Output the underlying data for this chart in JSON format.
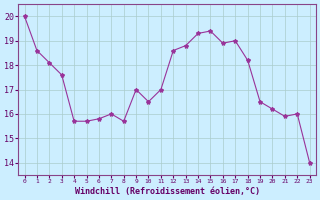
{
  "x": [
    0,
    1,
    2,
    3,
    4,
    5,
    6,
    7,
    8,
    9,
    10,
    11,
    12,
    13,
    14,
    15,
    16,
    17,
    18,
    19,
    20,
    21,
    22,
    23
  ],
  "y": [
    20.0,
    18.6,
    18.1,
    17.6,
    15.7,
    15.7,
    15.8,
    16.0,
    15.7,
    17.0,
    16.5,
    17.0,
    18.6,
    18.8,
    19.3,
    19.4,
    18.9,
    19.0,
    18.2,
    16.5,
    16.2,
    15.9,
    16.0,
    14.0
  ],
  "xlabel": "Windchill (Refroidissement éolien,°C)",
  "ylim": [
    13.5,
    20.5
  ],
  "xlim": [
    -0.5,
    23.5
  ],
  "yticks": [
    14,
    15,
    16,
    17,
    18,
    19,
    20
  ],
  "xticks": [
    0,
    1,
    2,
    3,
    4,
    5,
    6,
    7,
    8,
    9,
    10,
    11,
    12,
    13,
    14,
    15,
    16,
    17,
    18,
    19,
    20,
    21,
    22,
    23
  ],
  "xtick_labels": [
    "0",
    "1",
    "2",
    "3",
    "4",
    "5",
    "6",
    "7",
    "8",
    "9",
    "10",
    "11",
    "12",
    "13",
    "14",
    "15",
    "16",
    "17",
    "18",
    "19",
    "20",
    "21",
    "22",
    "23"
  ],
  "line_color": "#993399",
  "marker": "*",
  "bg_color": "#cceeff",
  "grid_color": "#aacccc",
  "label_color": "#660066",
  "xlabel_color": "#660066",
  "spine_color": "#884488",
  "tick_color": "#660066"
}
